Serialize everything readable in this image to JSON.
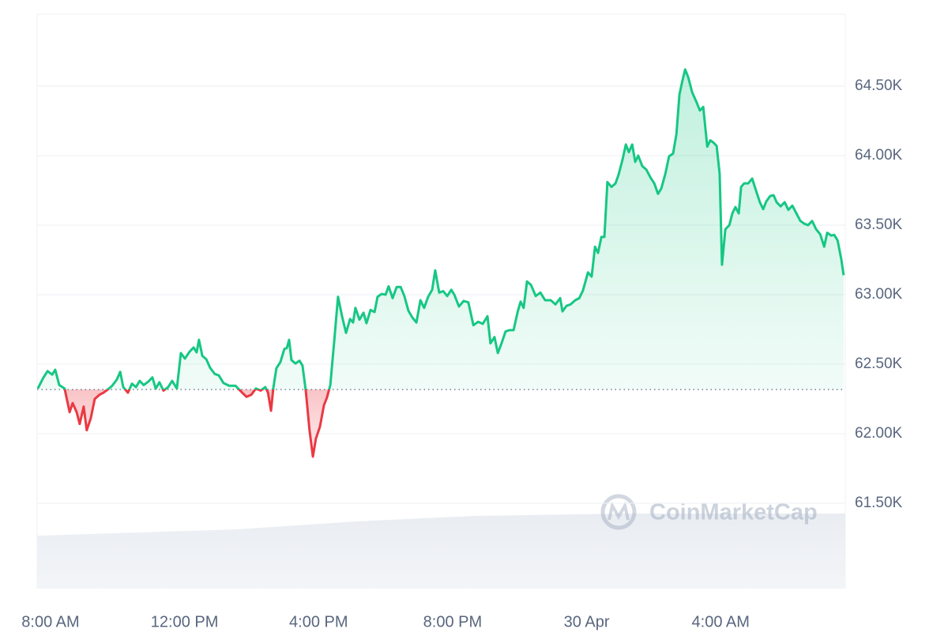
{
  "chart_data": {
    "type": "line",
    "watermark": "CoinMarketCap",
    "x": [
      7.62,
      7.79,
      7.91,
      8.05,
      8.14,
      8.26,
      8.42,
      8.57,
      8.66,
      8.78,
      8.87,
      8.99,
      9.08,
      9.2,
      9.32,
      9.46,
      9.58,
      9.72,
      9.84,
      9.98,
      10.08,
      10.17,
      10.31,
      10.43,
      10.55,
      10.66,
      10.78,
      10.92,
      11.04,
      11.14,
      11.25,
      11.37,
      11.51,
      11.63,
      11.77,
      11.89,
      12.01,
      12.15,
      12.27,
      12.36,
      12.43,
      12.53,
      12.65,
      12.76,
      12.9,
      13.02,
      13.16,
      13.33,
      13.52,
      13.68,
      13.85,
      13.99,
      14.13,
      14.27,
      14.41,
      14.49,
      14.58,
      14.65,
      14.74,
      14.86,
      14.98,
      15.05,
      15.12,
      15.19,
      15.31,
      15.43,
      15.52,
      15.62,
      15.73,
      15.83,
      15.92,
      16.04,
      16.16,
      16.25,
      16.35,
      16.47,
      16.58,
      16.7,
      16.82,
      16.94,
      17.03,
      17.1,
      17.22,
      17.34,
      17.43,
      17.55,
      17.67,
      17.76,
      17.88,
      18.0,
      18.09,
      18.21,
      18.33,
      18.45,
      18.56,
      18.68,
      18.8,
      18.92,
      19.04,
      19.15,
      19.27,
      19.39,
      19.48,
      19.6,
      19.72,
      19.84,
      19.96,
      20.05,
      20.19,
      20.33,
      20.47,
      20.62,
      20.76,
      20.9,
      21.04,
      21.13,
      21.25,
      21.35,
      21.46,
      21.58,
      21.7,
      21.82,
      21.94,
      22.03,
      22.12,
      22.22,
      22.34,
      22.48,
      22.62,
      22.76,
      22.93,
      23.07,
      23.21,
      23.28,
      23.4,
      23.52,
      23.66,
      23.78,
      23.89,
      24.04,
      24.15,
      24.25,
      24.34,
      24.44,
      24.53,
      24.62,
      24.74,
      24.86,
      24.95,
      25.07,
      25.17,
      25.26,
      25.36,
      25.45,
      25.54,
      25.66,
      25.78,
      25.9,
      26.02,
      26.13,
      26.23,
      26.35,
      26.46,
      26.58,
      26.68,
      26.77,
      26.86,
      26.94,
      27.03,
      27.15,
      27.27,
      27.38,
      27.48,
      27.6,
      27.69,
      27.78,
      27.88,
      27.97,
      28.04,
      28.14,
      28.26,
      28.35,
      28.44,
      28.54,
      28.61,
      28.7,
      28.82,
      28.94,
      29.06,
      29.17,
      29.27,
      29.36,
      29.48,
      29.58,
      29.67,
      29.79,
      29.91,
      30.02,
      30.14,
      30.26,
      30.38,
      30.5,
      30.61,
      30.73,
      30.85,
      30.97,
      31.09,
      31.18,
      31.3,
      31.39,
      31.49,
      31.6,
      31.67
    ],
    "values": [
      62325,
      62405,
      62450,
      62425,
      62460,
      62350,
      62325,
      62155,
      62220,
      62155,
      62070,
      62195,
      62025,
      62110,
      62250,
      62280,
      62295,
      62320,
      62345,
      62390,
      62445,
      62335,
      62295,
      62360,
      62335,
      62380,
      62350,
      62375,
      62405,
      62325,
      62370,
      62310,
      62335,
      62380,
      62325,
      62580,
      62540,
      62590,
      62620,
      62585,
      62675,
      62560,
      62535,
      62475,
      62430,
      62420,
      62365,
      62345,
      62345,
      62305,
      62265,
      62280,
      62325,
      62310,
      62335,
      62295,
      62165,
      62330,
      62470,
      62515,
      62610,
      62615,
      62675,
      62530,
      62505,
      62525,
      62490,
      62305,
      62025,
      61835,
      61965,
      62050,
      62205,
      62260,
      62350,
      62675,
      62985,
      62845,
      62725,
      62825,
      62800,
      62905,
      62820,
      62870,
      62795,
      62890,
      62875,
      62985,
      63005,
      63000,
      63060,
      62975,
      63055,
      63055,
      62990,
      62885,
      62835,
      62800,
      62960,
      62905,
      62985,
      63035,
      63175,
      63015,
      63025,
      62990,
      63035,
      63000,
      62915,
      62955,
      62945,
      62780,
      62805,
      62790,
      62845,
      62650,
      62695,
      62580,
      62650,
      62735,
      62745,
      62745,
      62875,
      62950,
      62905,
      63095,
      63070,
      62990,
      63015,
      62960,
      62960,
      62930,
      62975,
      62880,
      62920,
      62930,
      62960,
      62975,
      63030,
      63160,
      63130,
      63345,
      63300,
      63415,
      63415,
      63810,
      63775,
      63800,
      63860,
      63970,
      64080,
      64025,
      64080,
      63955,
      64000,
      63925,
      63900,
      63845,
      63800,
      63725,
      63765,
      63870,
      63995,
      64015,
      64155,
      64440,
      64540,
      64620,
      64565,
      64455,
      64390,
      64325,
      64350,
      64065,
      64110,
      64095,
      64070,
      63870,
      63215,
      63470,
      63500,
      63585,
      63630,
      63585,
      63775,
      63800,
      63800,
      63835,
      63745,
      63665,
      63615,
      63670,
      63710,
      63715,
      63665,
      63635,
      63665,
      63610,
      63640,
      63585,
      63530,
      63510,
      63500,
      63530,
      63470,
      63435,
      63345,
      63445,
      63425,
      63430,
      63390,
      63255,
      63140
    ],
    "baseline": 62318,
    "colors": {
      "up": "#16c784",
      "down": "#ea3943"
    },
    "xlim": [
      7.6,
      31.72
    ],
    "xticks": [
      {
        "value": 8,
        "label": "8:00 AM"
      },
      {
        "value": 12,
        "label": "12:00 PM"
      },
      {
        "value": 16,
        "label": "4:00 PM"
      },
      {
        "value": 20,
        "label": "8:00 PM"
      },
      {
        "value": 24,
        "label": "30 Apr"
      },
      {
        "value": 28,
        "label": "4:00 AM"
      }
    ],
    "ylim": [
      60886,
      65017
    ],
    "yticks": [
      {
        "value": 61500,
        "label": "61.50K"
      },
      {
        "value": 62000,
        "label": "62.00K"
      },
      {
        "value": 62500,
        "label": "62.50K"
      },
      {
        "value": 63000,
        "label": "63.00K"
      },
      {
        "value": 63500,
        "label": "63.50K"
      },
      {
        "value": 64000,
        "label": "64.00K"
      },
      {
        "value": 64500,
        "label": "64.50K"
      }
    ],
    "grid": true
  }
}
